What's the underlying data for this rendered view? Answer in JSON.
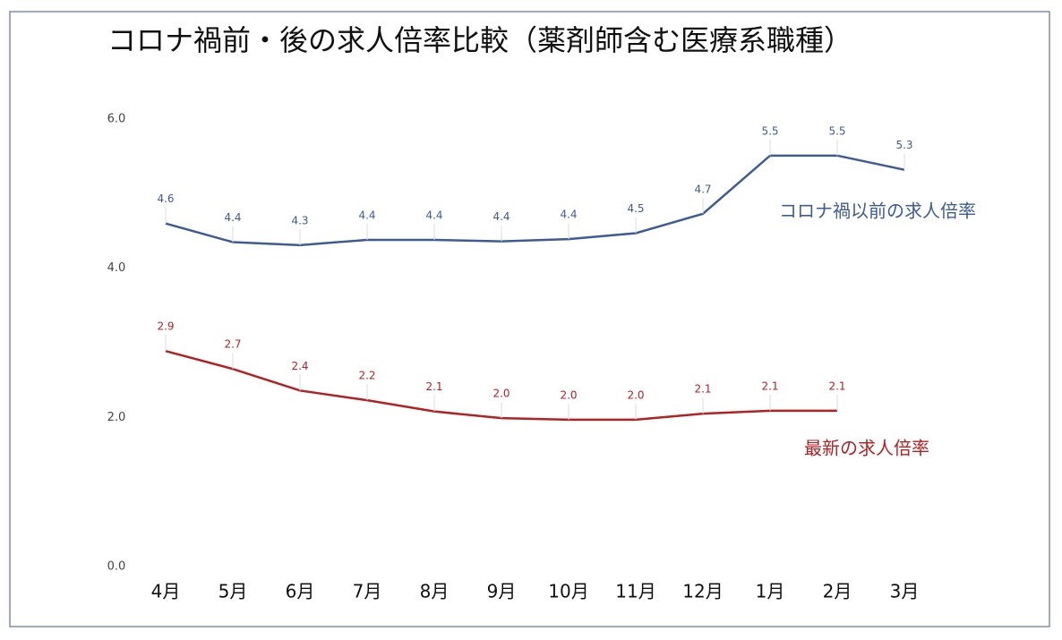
{
  "chart_data": {
    "type": "line",
    "title": "コロナ禍前・後の求人倍率比較（薬剤師含む医療系職種）",
    "categories": [
      "4月",
      "5月",
      "6月",
      "7月",
      "8月",
      "9月",
      "10月",
      "11月",
      "12月",
      "1月",
      "2月",
      "3月"
    ],
    "series": [
      {
        "name": "コロナ禍以前の求人倍率",
        "color": "#3d5c96",
        "values": [
          4.6,
          4.35,
          4.31,
          4.38,
          4.38,
          4.36,
          4.39,
          4.47,
          4.73,
          5.51,
          5.51,
          5.32
        ],
        "value_labels": [
          "4.6",
          "4.4",
          "4.3",
          "4.4",
          "4.4",
          "4.4",
          "4.4",
          "4.5",
          "4.7",
          "5.5",
          "5.5",
          "5.3"
        ]
      },
      {
        "name": "最新の求人倍率",
        "color": "#b22222",
        "values": [
          2.89,
          2.65,
          2.36,
          2.23,
          2.08,
          1.99,
          1.97,
          1.97,
          2.05,
          2.09,
          2.09,
          null
        ],
        "value_labels": [
          "2.9",
          "2.7",
          "2.4",
          "2.2",
          "2.1",
          "2.0",
          "2.0",
          "2.0",
          "2.1",
          "2.1",
          "2.1",
          null
        ]
      }
    ],
    "ylim": [
      0,
      6
    ],
    "yticks": [
      {
        "value": 0,
        "label": "0.0"
      },
      {
        "value": 2,
        "label": "2.0"
      },
      {
        "value": 4,
        "label": "4.0"
      },
      {
        "value": 6,
        "label": "6.0"
      }
    ],
    "grid": false
  }
}
